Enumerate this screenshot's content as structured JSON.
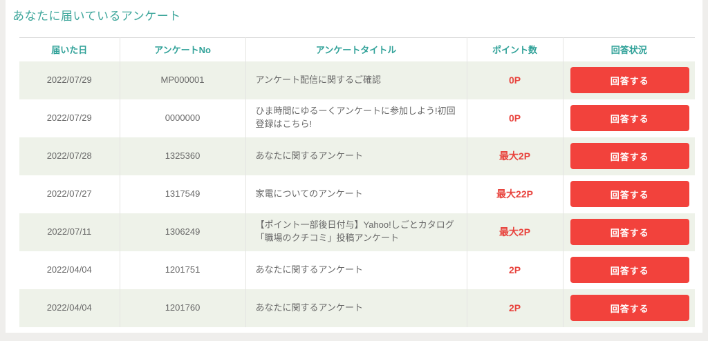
{
  "page": {
    "title": "あなたに届いているアンケート",
    "colors": {
      "accent_teal": "#3FA79C",
      "accent_red": "#F2423C",
      "points_red": "#E8423C",
      "row_shade": "#EEF2E9",
      "page_background": "#EFEEEC",
      "card_background": "#FFFFFF",
      "table_top_border": "#D9D9D9",
      "body_text": "#686868"
    }
  },
  "table": {
    "headers": {
      "received_date": "届いた日",
      "survey_no": "アンケートNo",
      "survey_title": "アンケートタイトル",
      "points": "ポイント数",
      "status": "回答状況"
    },
    "answer_button_label": "回答する",
    "rows": [
      {
        "date": "2022/07/29",
        "no": "MP000001",
        "title": "アンケート配信に関するご確認",
        "points": "0P"
      },
      {
        "date": "2022/07/29",
        "no": "0000000",
        "title": "ひま時間にゆるーくアンケートに参加しよう!初回登録はこちら!",
        "points": "0P"
      },
      {
        "date": "2022/07/28",
        "no": "1325360",
        "title": "あなたに関するアンケート",
        "points": "最大2P"
      },
      {
        "date": "2022/07/27",
        "no": "1317549",
        "title": "家電についてのアンケート",
        "points": "最大22P"
      },
      {
        "date": "2022/07/11",
        "no": "1306249",
        "title": "【ポイント一部後日付与】Yahoo!しごとカタログ「職場のクチコミ」投稿アンケート",
        "points": "最大2P"
      },
      {
        "date": "2022/04/04",
        "no": "1201751",
        "title": "あなたに関するアンケート",
        "points": "2P"
      },
      {
        "date": "2022/04/04",
        "no": "1201760",
        "title": "あなたに関するアンケート",
        "points": "2P"
      }
    ]
  }
}
